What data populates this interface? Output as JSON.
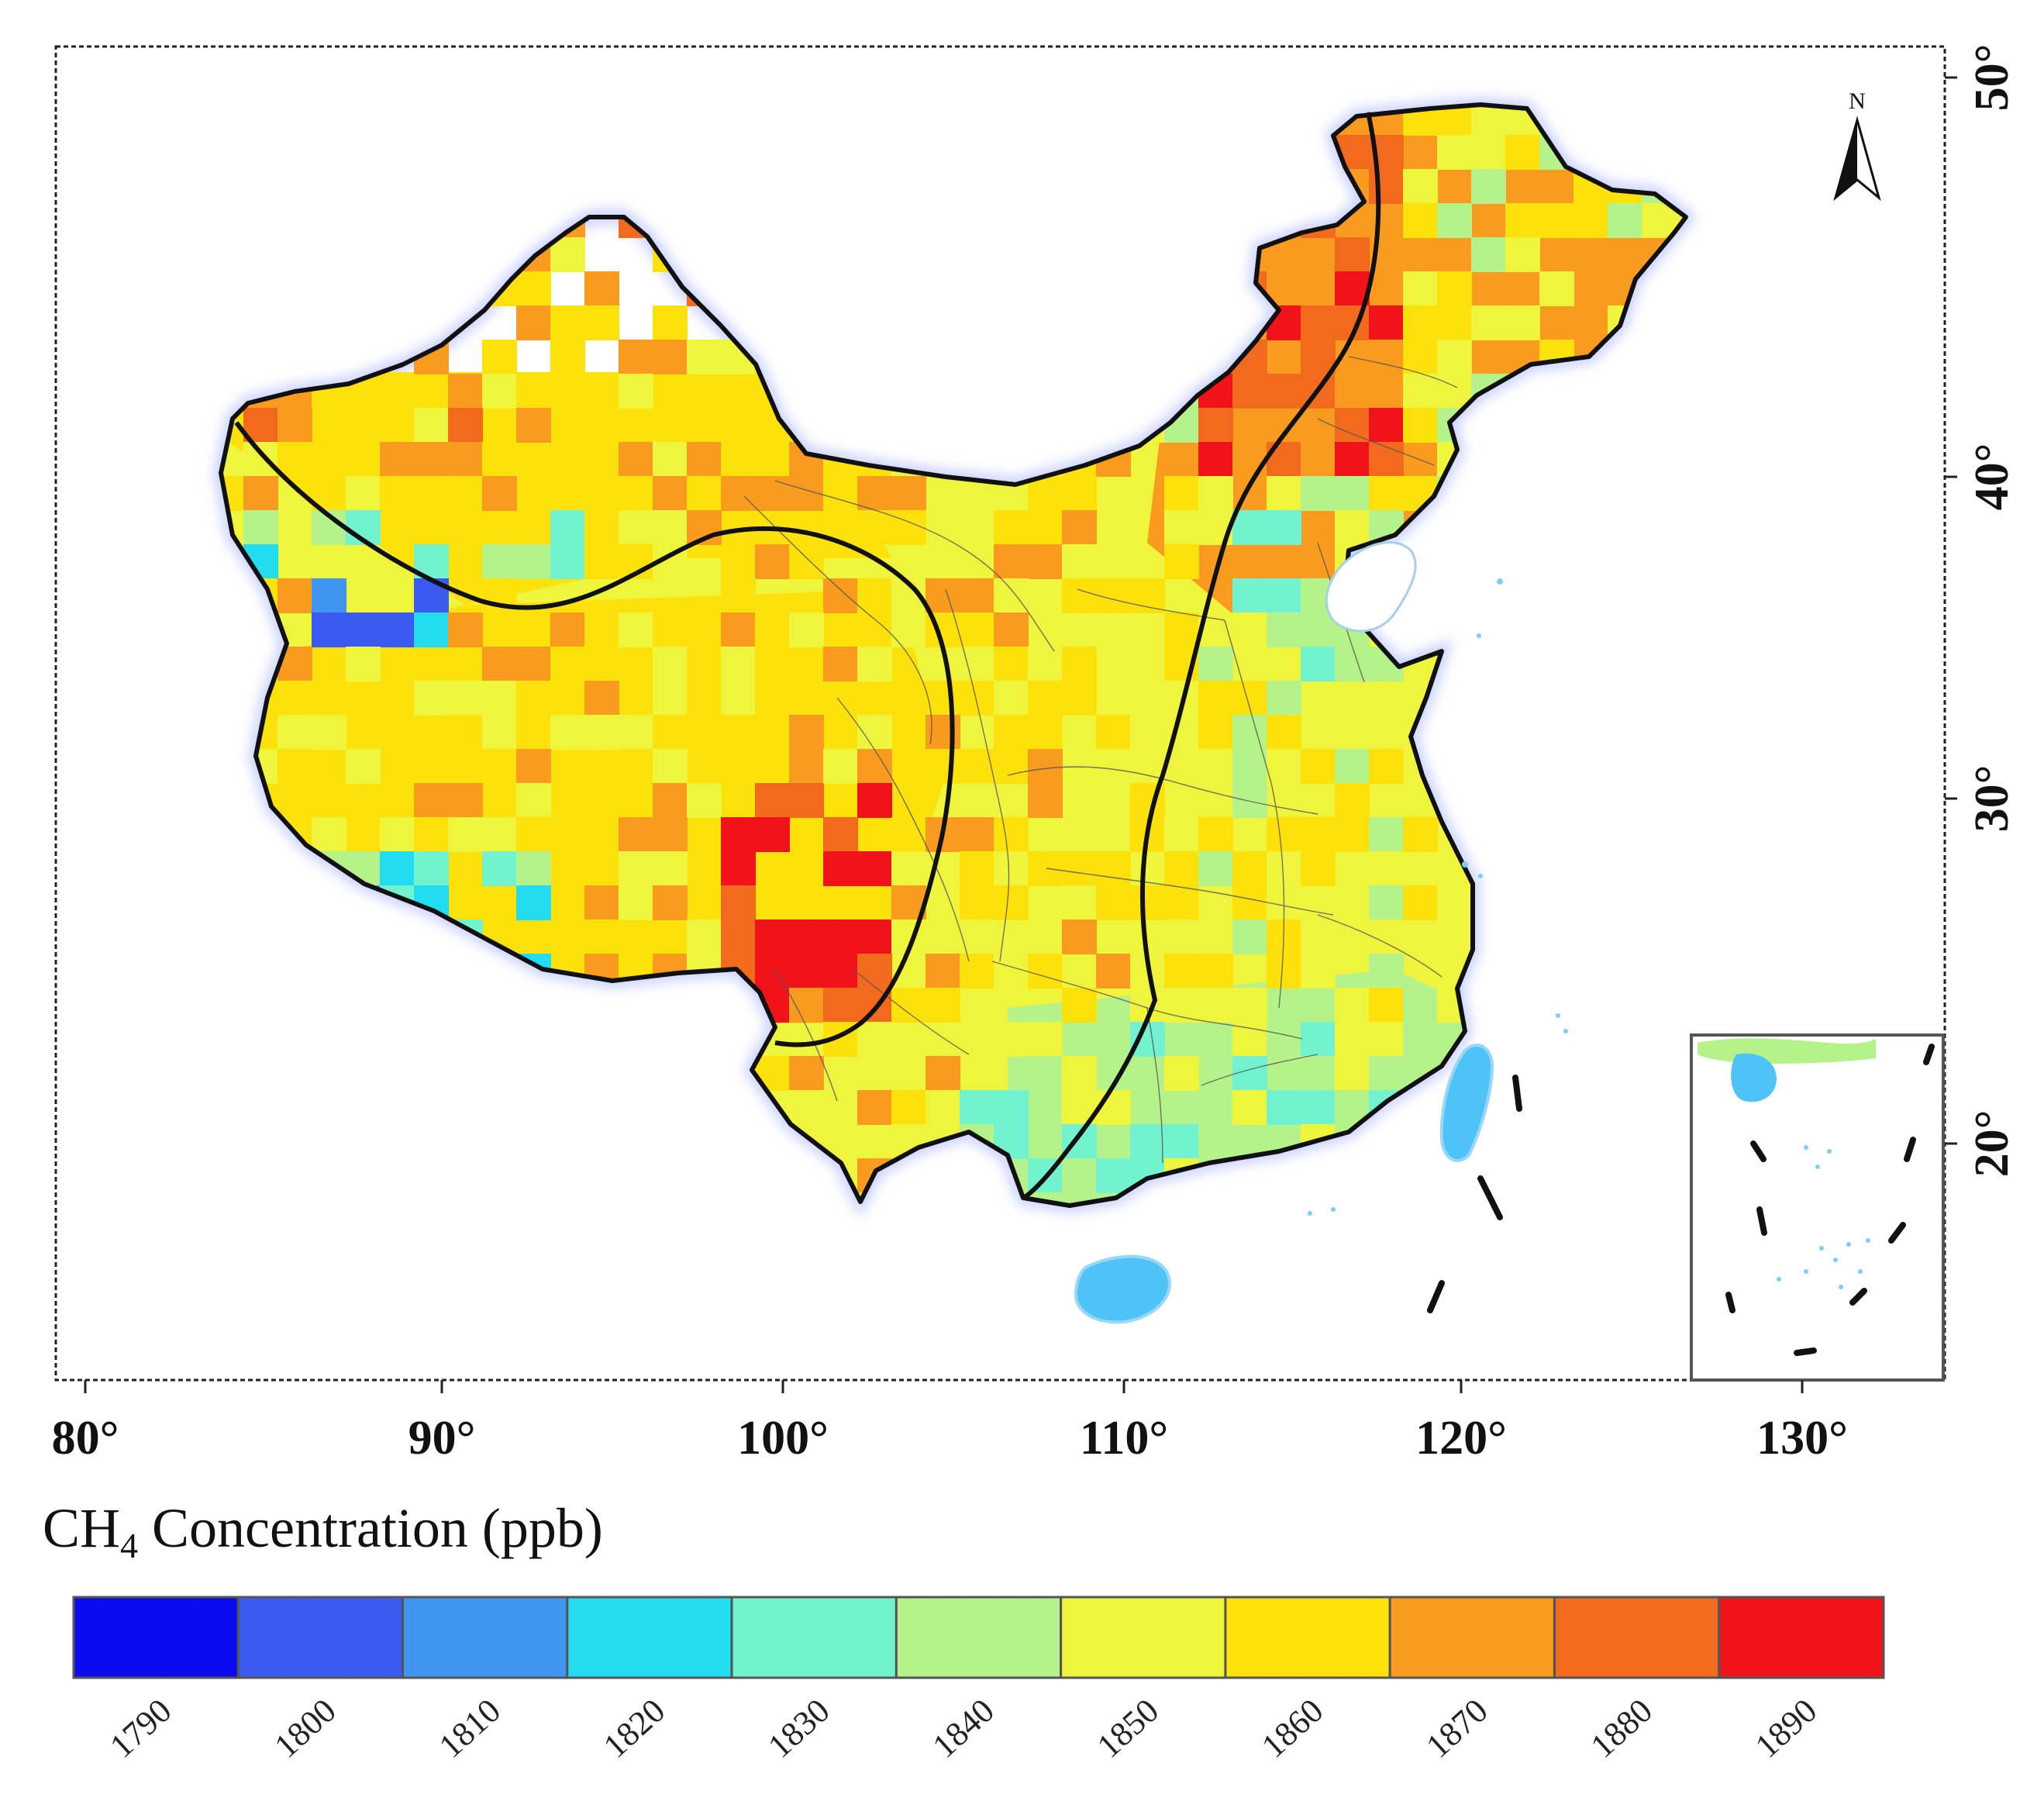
{
  "figure": {
    "lon_ticks": [
      "80°",
      "90°",
      "100°",
      "110°",
      "120°",
      "130°"
    ],
    "lat_ticks": [
      "50°",
      "40°",
      "30°",
      "20°"
    ],
    "north_label": "N",
    "legend": {
      "title_prefix": "CH",
      "title_subscript": "4",
      "title_suffix": " Concentration (ppb)",
      "values": [
        "1790",
        "1800",
        "1810",
        "1820",
        "1830",
        "1840",
        "1850",
        "1860",
        "1870",
        "1880",
        "1890"
      ],
      "colors": [
        "#0a0af0",
        "#3a5af0",
        "#3f96f0",
        "#22ddf0",
        "#72f2cf",
        "#b6f28a",
        "#eef53c",
        "#fce10a",
        "#f99b1e",
        "#f26a1e",
        "#f0141a"
      ]
    }
  },
  "colors": {
    "frame": "#222222",
    "boundary": "#111111",
    "water": "#4fc3f7",
    "inset_border": "#555555"
  }
}
